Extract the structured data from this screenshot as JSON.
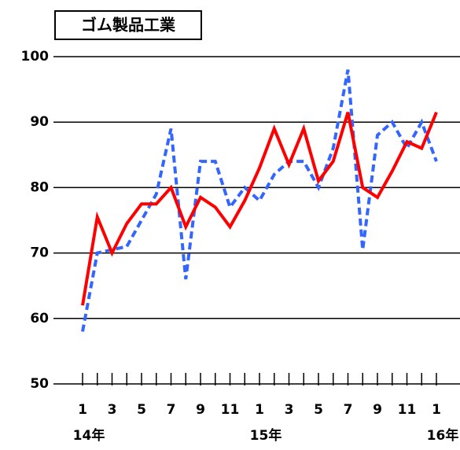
{
  "chart_data": {
    "type": "line",
    "title": "ゴム製品工業",
    "categories": [
      "1",
      null,
      "3",
      null,
      "5",
      null,
      "7",
      null,
      "9",
      null,
      "11",
      null,
      "1",
      null,
      "3",
      null,
      "5",
      null,
      "7",
      null,
      "9",
      null,
      "11",
      null,
      "1"
    ],
    "categories2": [
      "14年",
      null,
      null,
      null,
      null,
      null,
      null,
      null,
      null,
      null,
      null,
      null,
      "15年",
      null,
      null,
      null,
      null,
      null,
      null,
      null,
      null,
      null,
      null,
      null,
      "16年"
    ],
    "series": [
      {
        "color": "#3366ff",
        "dashed": true,
        "values": [
          58,
          70,
          70.5,
          71,
          75,
          79,
          89,
          66,
          84,
          84,
          77,
          80,
          78,
          82,
          84,
          84,
          80,
          86,
          98,
          70.5,
          88,
          90,
          86,
          90,
          84
        ]
      },
      {
        "color": "#ff0000",
        "dashed": false,
        "values": [
          62,
          75.5,
          70,
          74.5,
          77.5,
          77.5,
          80,
          74,
          78.5,
          77,
          74,
          78,
          83,
          89,
          83.5,
          89,
          81,
          84,
          91.5,
          80,
          78.5,
          82.5,
          87,
          86,
          91.5
        ]
      }
    ],
    "ylim": [
      50,
      100
    ],
    "yticks": [
      50,
      60,
      70,
      80,
      90,
      100
    ],
    "grid": true
  }
}
